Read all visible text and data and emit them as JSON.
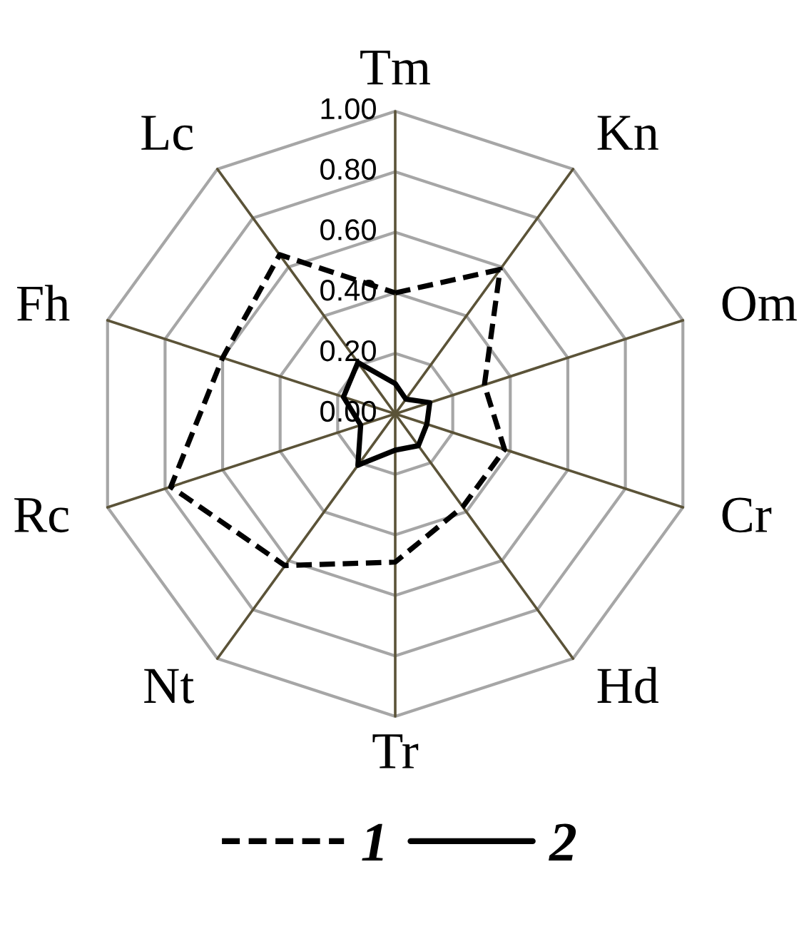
{
  "chart_data": {
    "type": "radar",
    "categories": [
      "Tm",
      "Kn",
      "Om",
      "Cr",
      "Hd",
      "Tr",
      "Nt",
      "Rc",
      "Fh",
      "Lc"
    ],
    "ylim": [
      0,
      1
    ],
    "yticks": [
      {
        "value": 0,
        "label": "0.00"
      },
      {
        "value": 0.2,
        "label": "0.20"
      },
      {
        "value": 0.4,
        "label": "0.40"
      },
      {
        "value": 0.6,
        "label": "0.60"
      },
      {
        "value": 0.8,
        "label": "0.80"
      },
      {
        "value": 1,
        "label": "1.00"
      }
    ],
    "grid": true,
    "legend": "bottom",
    "marker": "none",
    "series": [
      {
        "name": "1",
        "color": "#000000",
        "line_style": "dashed",
        "values": [
          0.4,
          0.59,
          0.31,
          0.38,
          0.38,
          0.49,
          0.62,
          0.78,
          0.6,
          0.65
        ]
      },
      {
        "name": "2",
        "color": "#000000",
        "line_style": "solid",
        "values": [
          0.1,
          0.06,
          0.12,
          0.11,
          0.13,
          0.12,
          0.21,
          0.12,
          0.18,
          0.21
        ]
      }
    ]
  }
}
